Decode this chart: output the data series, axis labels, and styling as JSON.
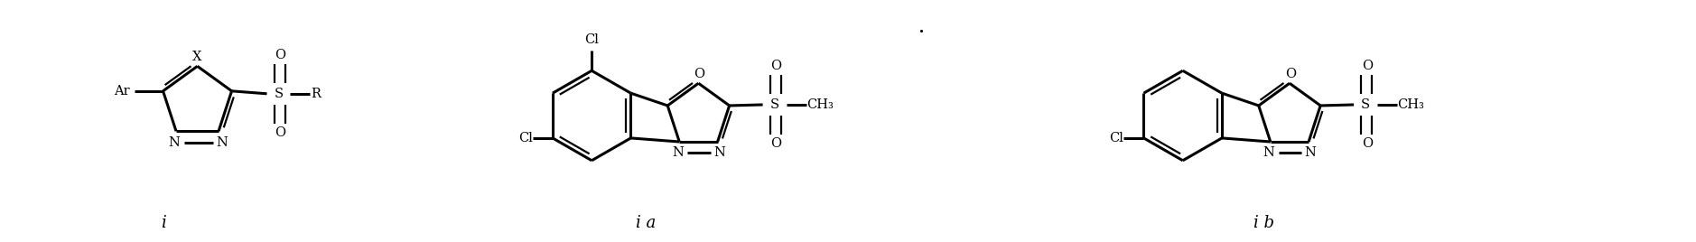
{
  "bg_color": "#ffffff",
  "fig_width": 18.78,
  "fig_height": 2.68,
  "dpi": 100,
  "label_i": "i",
  "label_ia": "i a",
  "label_ib": "i b",
  "lw": 1.6,
  "lw_b": 2.2,
  "fs": 10.5,
  "fs_label": 13
}
